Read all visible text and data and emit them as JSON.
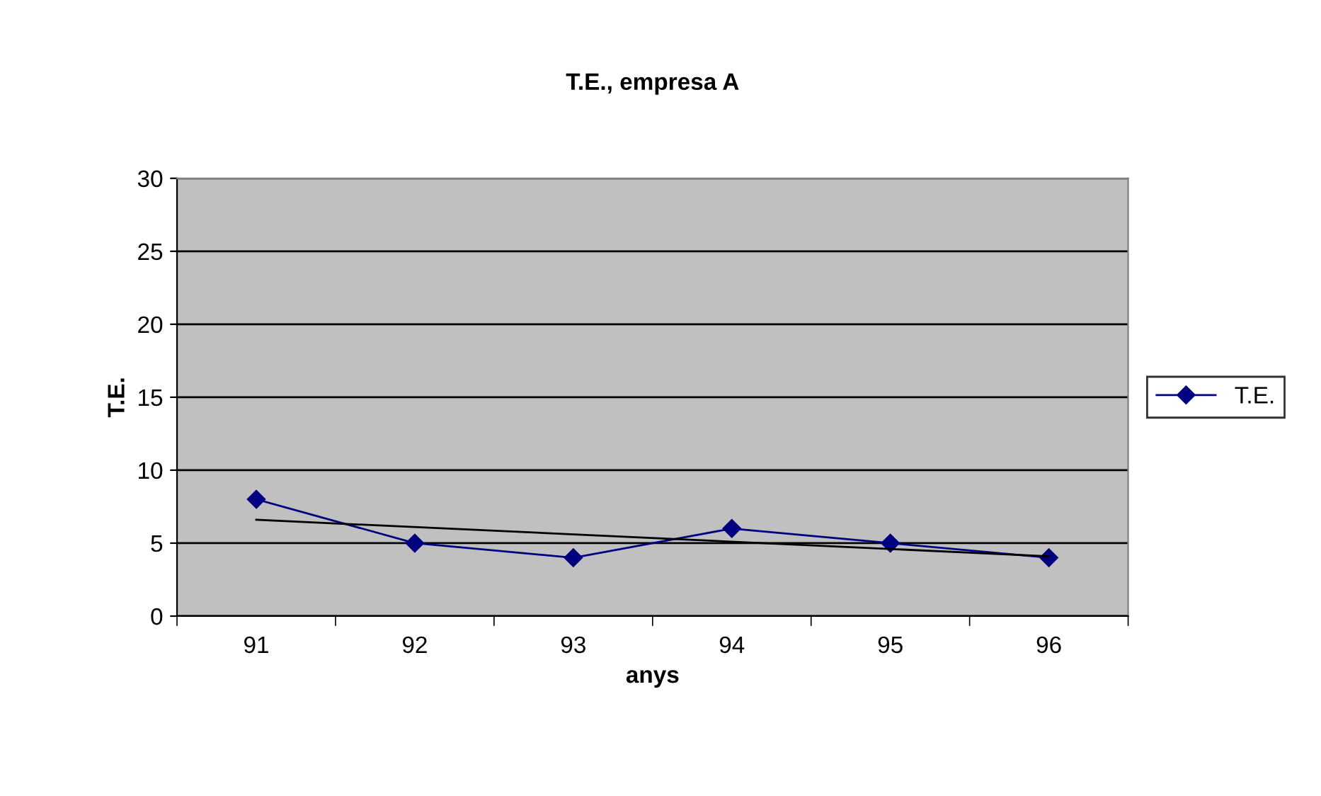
{
  "chart_data": {
    "type": "line",
    "title": "T.E., empresa A",
    "xlabel": "anys",
    "ylabel": "T.E.",
    "categories": [
      "91",
      "92",
      "93",
      "94",
      "95",
      "96"
    ],
    "series": [
      {
        "name": "T.E.",
        "color": "#000080",
        "values": [
          8,
          5,
          4,
          6,
          5,
          4
        ],
        "marker": "diamond"
      },
      {
        "color": "#000000",
        "x": [
          "91",
          "96"
        ],
        "values": [
          6.6,
          4.1
        ],
        "marker": "none"
      }
    ],
    "ylim": [
      0,
      30
    ],
    "yticks": [
      0,
      5,
      10,
      15,
      20,
      25,
      30
    ],
    "grid": "y",
    "legend": "right"
  }
}
